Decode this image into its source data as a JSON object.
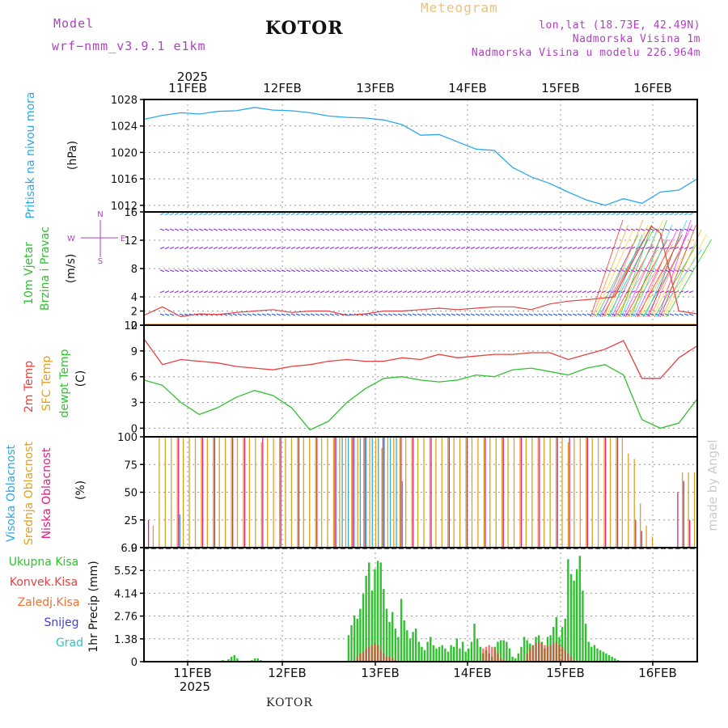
{
  "header": {
    "model_label": "Model",
    "model_name": "wrf−nmm_v3.9.1  e1km",
    "station": "KOTOR",
    "meteogram": "Meteogram",
    "coords": "lon,lat (18.73E, 42.49N)",
    "elevation": "Nadmorska Visina 1m",
    "model_elevation": "Nadmorska Visina u modelu 226.964m",
    "credit": "made by Angel",
    "footer_station": "KOTOR"
  },
  "colors": {
    "pressure": "#2aa8e8",
    "t2m": "#e84040",
    "sfc": "#e0a020",
    "dewpt": "#30c030",
    "high_cloud": "#30a8e0",
    "mid_cloud": "#e0a020",
    "low_cloud": "#e02080",
    "rain_total": "#30c030",
    "convective": "#e84040",
    "freezing": "#f07030",
    "snow": "#4040e0",
    "hail": "#30c0c0",
    "wind_label": "#30c030",
    "legend_purple": "#b040c0"
  },
  "chart_data": [
    {
      "type": "line",
      "id": "pressure",
      "ylabel": "Pritisak na nivou mora",
      "unit": "(hPa)",
      "ylim": [
        1011,
        1028
      ],
      "yticks": [
        "1012",
        "1016",
        "1020",
        "1024",
        "1028"
      ],
      "x_top": [
        "11FEB",
        "12FEB",
        "13FEB",
        "14FEB",
        "15FEB",
        "16FEB"
      ],
      "x_year": "2025",
      "series": [
        {
          "x": [
            0,
            0.2,
            0.4,
            0.6,
            0.8,
            1,
            1.2,
            1.4,
            1.6,
            1.8,
            2,
            2.2,
            2.4,
            2.6,
            2.8,
            3,
            3.2,
            3.4,
            3.6,
            3.8,
            4,
            4.2,
            4.4,
            4.6,
            4.8,
            5,
            5.2,
            5.4,
            5.6,
            5.8,
            6
          ],
          "values": [
            1025.0,
            1025.6,
            1026.0,
            1025.8,
            1026.2,
            1026.3,
            1026.8,
            1026.4,
            1026.3,
            1026.0,
            1025.5,
            1025.3,
            1025.2,
            1024.9,
            1024.2,
            1022.6,
            1022.7,
            1021.6,
            1020.5,
            1020.3,
            1017.7,
            1016.3,
            1015.3,
            1014.0,
            1012.8,
            1012.0,
            1013.0,
            1012.3,
            1014.0,
            1014.3,
            1016.0
          ]
        }
      ]
    },
    {
      "type": "line",
      "id": "wind",
      "ylabel": "10m Vjetar",
      "ylabel2": "Brzina i Pravac",
      "unit": "(m/s)",
      "compass": [
        "N",
        "W",
        "E",
        "S"
      ],
      "ylim": [
        0,
        16
      ],
      "yticks": [
        "0",
        "2",
        "4",
        "8",
        "12",
        "16"
      ],
      "series": [
        {
          "name": "speed",
          "x": [
            0,
            0.2,
            0.4,
            0.6,
            0.8,
            1,
            1.2,
            1.4,
            1.6,
            1.8,
            2,
            2.2,
            2.4,
            2.6,
            2.8,
            3,
            3.2,
            3.4,
            3.6,
            3.8,
            4,
            4.2,
            4.4,
            4.6,
            4.8,
            4.95,
            5.1,
            5.3,
            5.5,
            5.6,
            5.8,
            6
          ],
          "values": [
            1.4,
            2.6,
            1.2,
            1.6,
            1.5,
            1.8,
            2.0,
            2.2,
            1.8,
            2.0,
            2.0,
            1.4,
            1.6,
            2.0,
            2.0,
            2.2,
            2.4,
            2.2,
            2.4,
            2.6,
            2.6,
            2.2,
            3.0,
            3.4,
            3.6,
            3.8,
            4.0,
            9.0,
            14.0,
            13.0,
            2.0,
            1.6
          ]
        }
      ]
    },
    {
      "type": "line",
      "id": "temperature",
      "ylabel": "2m Temp",
      "ylabel2": "SFC Temp",
      "ylabel3": "dewpt Temp",
      "unit": "(C)",
      "ylim": [
        -1,
        12
      ],
      "yticks": [
        "0",
        "3",
        "6",
        "9",
        "12"
      ],
      "series": [
        {
          "name": "2m Temp",
          "x": [
            0,
            0.2,
            0.4,
            0.6,
            0.8,
            1,
            1.2,
            1.4,
            1.6,
            1.8,
            2,
            2.2,
            2.4,
            2.6,
            2.8,
            3,
            3.2,
            3.4,
            3.6,
            3.8,
            4,
            4.2,
            4.4,
            4.6,
            4.8,
            5,
            5.2,
            5.4,
            5.6,
            5.8,
            6
          ],
          "values": [
            10.4,
            7.4,
            8.0,
            7.8,
            7.6,
            7.2,
            7.0,
            6.8,
            7.2,
            7.4,
            7.8,
            8.0,
            7.8,
            7.8,
            8.2,
            8.0,
            8.6,
            8.2,
            8.4,
            8.6,
            8.6,
            8.8,
            8.8,
            8.0,
            8.6,
            9.2,
            10.2,
            5.8,
            5.8,
            8.2,
            9.6
          ]
        },
        {
          "name": "SFC Temp",
          "x": [
            0,
            6
          ],
          "values": [
            12.1,
            12.1
          ]
        },
        {
          "name": "dewpt Temp",
          "x": [
            0,
            0.2,
            0.4,
            0.6,
            0.8,
            1,
            1.2,
            1.4,
            1.6,
            1.8,
            2,
            2.2,
            2.4,
            2.6,
            2.8,
            3,
            3.2,
            3.4,
            3.6,
            3.8,
            4,
            4.2,
            4.4,
            4.6,
            4.8,
            5,
            5.2,
            5.4,
            5.6,
            5.8,
            6
          ],
          "values": [
            5.6,
            5.0,
            3.0,
            1.6,
            2.4,
            3.6,
            4.4,
            3.8,
            2.4,
            -0.2,
            0.8,
            3.0,
            4.6,
            5.8,
            6.0,
            5.6,
            5.4,
            5.6,
            6.2,
            6.0,
            6.8,
            7.0,
            6.6,
            6.2,
            7.0,
            7.4,
            6.2,
            1.0,
            0.0,
            0.6,
            3.4
          ]
        }
      ]
    },
    {
      "type": "bar",
      "id": "cloud",
      "ylabel": "Visoka Oblacnost",
      "ylabel2": "Srednja Oblacnost",
      "ylabel3": "Niska Oblacnost",
      "unit": "(%)",
      "ylim": [
        0,
        100
      ],
      "yticks": [
        "0",
        "25",
        "50",
        "75",
        "100"
      ],
      "series": [
        {
          "name": "Srednja",
          "values": [
            0,
            20,
            100,
            100,
            100,
            100,
            100,
            100,
            100,
            100,
            100,
            100,
            100,
            100,
            100,
            100,
            100,
            100,
            100,
            95,
            100,
            100,
            100,
            100,
            100,
            100,
            100,
            100,
            100,
            100,
            100,
            100,
            100,
            100,
            100,
            100,
            100,
            100,
            100,
            90,
            100,
            100,
            100,
            100,
            100,
            100,
            100,
            100,
            100,
            100,
            100,
            100,
            100,
            100,
            100,
            100,
            100,
            100,
            100,
            100,
            100,
            100,
            100,
            100,
            100,
            100,
            100,
            100,
            100,
            100,
            95,
            100,
            100,
            100,
            100,
            100,
            100,
            100,
            100,
            100,
            85,
            80,
            40,
            20,
            10,
            0,
            0,
            0,
            0,
            68,
            68,
            68
          ]
        },
        {
          "name": "Niska",
          "values": [
            25,
            0,
            0,
            0,
            0,
            100,
            0,
            0,
            0,
            100,
            0,
            100,
            0,
            0,
            100,
            0,
            100,
            0,
            0,
            100,
            0,
            0,
            100,
            0,
            0,
            100,
            0,
            0,
            100,
            0,
            0,
            100,
            0,
            0,
            100,
            0,
            100,
            0,
            0,
            100,
            0,
            0,
            100,
            0,
            100,
            0,
            0,
            100,
            0,
            0,
            100,
            0,
            0,
            100,
            0,
            0,
            100,
            0,
            0,
            100,
            0,
            0,
            100,
            0,
            0,
            100,
            0,
            0,
            100,
            0,
            100,
            0,
            0,
            100,
            0,
            0,
            100,
            0,
            100,
            0,
            0,
            25,
            15,
            0,
            0,
            0,
            0,
            0,
            50,
            60,
            25,
            0
          ]
        },
        {
          "name": "Visoka",
          "values": [
            0,
            0,
            0,
            0,
            0,
            30,
            0,
            0,
            0,
            0,
            0,
            0,
            0,
            0,
            0,
            0,
            0,
            0,
            0,
            0,
            0,
            0,
            0,
            0,
            0,
            0,
            0,
            0,
            0,
            0,
            0,
            100,
            100,
            100,
            100,
            100,
            100,
            100,
            100,
            100,
            100,
            100,
            60,
            0,
            0,
            0,
            0,
            0,
            0,
            0,
            0,
            0,
            0,
            0,
            0,
            0,
            0,
            0,
            0,
            0,
            0,
            0,
            0,
            0,
            0,
            0,
            0,
            0,
            0,
            0,
            0,
            0,
            0,
            0,
            0,
            0,
            0,
            0,
            0,
            0,
            0,
            0,
            0,
            0,
            0,
            0,
            0,
            0,
            0,
            0,
            0,
            0
          ]
        }
      ]
    },
    {
      "type": "bar",
      "id": "precip",
      "ylabel": "1hr Precip (mm)",
      "legend": [
        "Ukupna Kisa",
        "Konvek.Kisa",
        "Zaledj.Kisa",
        "Snijeg",
        "Grad"
      ],
      "ylim": [
        0,
        6.9
      ],
      "yticks": [
        "0",
        "1.38",
        "2.76",
        "4.14",
        "5.52",
        "6.9"
      ],
      "x_bottom": [
        "11FEB",
        "12FEB",
        "13FEB",
        "14FEB",
        "15FEB",
        "16FEB"
      ],
      "x_year": "2025",
      "series": [
        {
          "name": "Ukupna Kisa",
          "values": [
            0,
            0,
            0,
            0,
            0,
            0,
            0,
            0,
            0,
            0,
            0,
            0,
            0,
            0,
            0,
            0,
            0,
            0,
            0,
            0,
            0,
            0,
            0,
            0,
            0.05,
            0,
            0.1,
            0,
            0.15,
            0.3,
            0.4,
            0.2,
            0,
            0,
            0,
            0,
            0.1,
            0.2,
            0.2,
            0.1,
            0,
            0,
            0,
            0,
            0,
            0,
            0,
            0,
            0,
            0,
            0,
            0,
            0,
            0,
            0,
            0,
            0,
            0,
            0,
            0,
            0,
            0,
            0,
            0,
            0,
            0,
            0,
            0,
            0,
            1.6,
            2.2,
            2.8,
            2.6,
            3.2,
            4.1,
            5.2,
            6.0,
            4.3,
            5.6,
            6.1,
            6.0,
            4.4,
            3.2,
            2.4,
            3.0,
            2.0,
            1.5,
            3.8,
            2.5,
            1.9,
            1.4,
            1.8,
            2.0,
            1.2,
            0.9,
            0.7,
            1.2,
            1.5,
            1.0,
            0.8,
            0.9,
            1.0,
            0.8,
            0.6,
            1.0,
            0.9,
            1.4,
            0.8,
            1.2,
            0.6,
            0.8,
            1.2,
            2.3,
            1.4,
            0.9,
            0.5,
            0.7,
            0.5,
            0.3,
            0.9,
            1.2,
            1.3,
            1.3,
            1.2,
            0.8,
            0.3,
            0.2,
            0.5,
            0.9,
            1.5,
            1.3,
            1.1,
            1.0,
            1.5,
            1.6,
            1.2,
            0.8,
            1.5,
            1.6,
            2.1,
            2.7,
            1.5,
            2.1,
            2.6,
            6.2,
            5.3,
            4.9,
            5.6,
            6.4,
            4.3,
            2.3,
            1.2,
            0.9,
            1.0,
            0.8,
            0.7,
            0.6,
            0.5,
            0.4,
            0.3,
            0.2,
            0.1,
            0,
            0,
            0,
            0,
            0,
            0,
            0,
            0,
            0,
            0,
            0,
            0,
            0,
            0,
            0,
            0,
            0,
            0,
            0,
            0,
            0,
            0,
            0,
            0,
            0,
            0,
            0
          ]
        },
        {
          "name": "Konvek.Kisa",
          "values": [
            0,
            0,
            0,
            0,
            0,
            0,
            0,
            0,
            0,
            0,
            0,
            0,
            0,
            0,
            0,
            0,
            0,
            0,
            0,
            0,
            0,
            0,
            0,
            0,
            0,
            0,
            0,
            0,
            0,
            0,
            0,
            0,
            0,
            0,
            0,
            0,
            0,
            0,
            0,
            0,
            0,
            0,
            0,
            0,
            0,
            0,
            0,
            0,
            0,
            0,
            0,
            0,
            0,
            0,
            0,
            0,
            0,
            0,
            0,
            0,
            0,
            0,
            0,
            0,
            0,
            0,
            0,
            0,
            0,
            0,
            0,
            0,
            0.3,
            0.5,
            0.6,
            0.8,
            0.9,
            1.0,
            1.1,
            1.0,
            0.7,
            0.5,
            0.3,
            0.3,
            0.2,
            0.1,
            0,
            0,
            0,
            0,
            0,
            0,
            0,
            0,
            0,
            0,
            0,
            0,
            0,
            0,
            0,
            0,
            0,
            0,
            0,
            0,
            0,
            0,
            0,
            0,
            0,
            0,
            0,
            0,
            0,
            0.8,
            0.9,
            1.0,
            0.9,
            0.8,
            0.5,
            0.2,
            0.1,
            0,
            0,
            0,
            0,
            0,
            0,
            0,
            0.5,
            0.8,
            1.0,
            1.1,
            1.2,
            1.1,
            1.0,
            0.9,
            1.0,
            1.1,
            1.2,
            1.0,
            0.9,
            0.7,
            0.5,
            0.3,
            0.1,
            0,
            0,
            0,
            0,
            0,
            0,
            0,
            0,
            0,
            0,
            0,
            0,
            0,
            0,
            0,
            0,
            0,
            0,
            0,
            0,
            0,
            0,
            0,
            0,
            0,
            0,
            0,
            0,
            0,
            0,
            0,
            0,
            0,
            0,
            0,
            0,
            0,
            0,
            0,
            0
          ]
        }
      ]
    }
  ]
}
